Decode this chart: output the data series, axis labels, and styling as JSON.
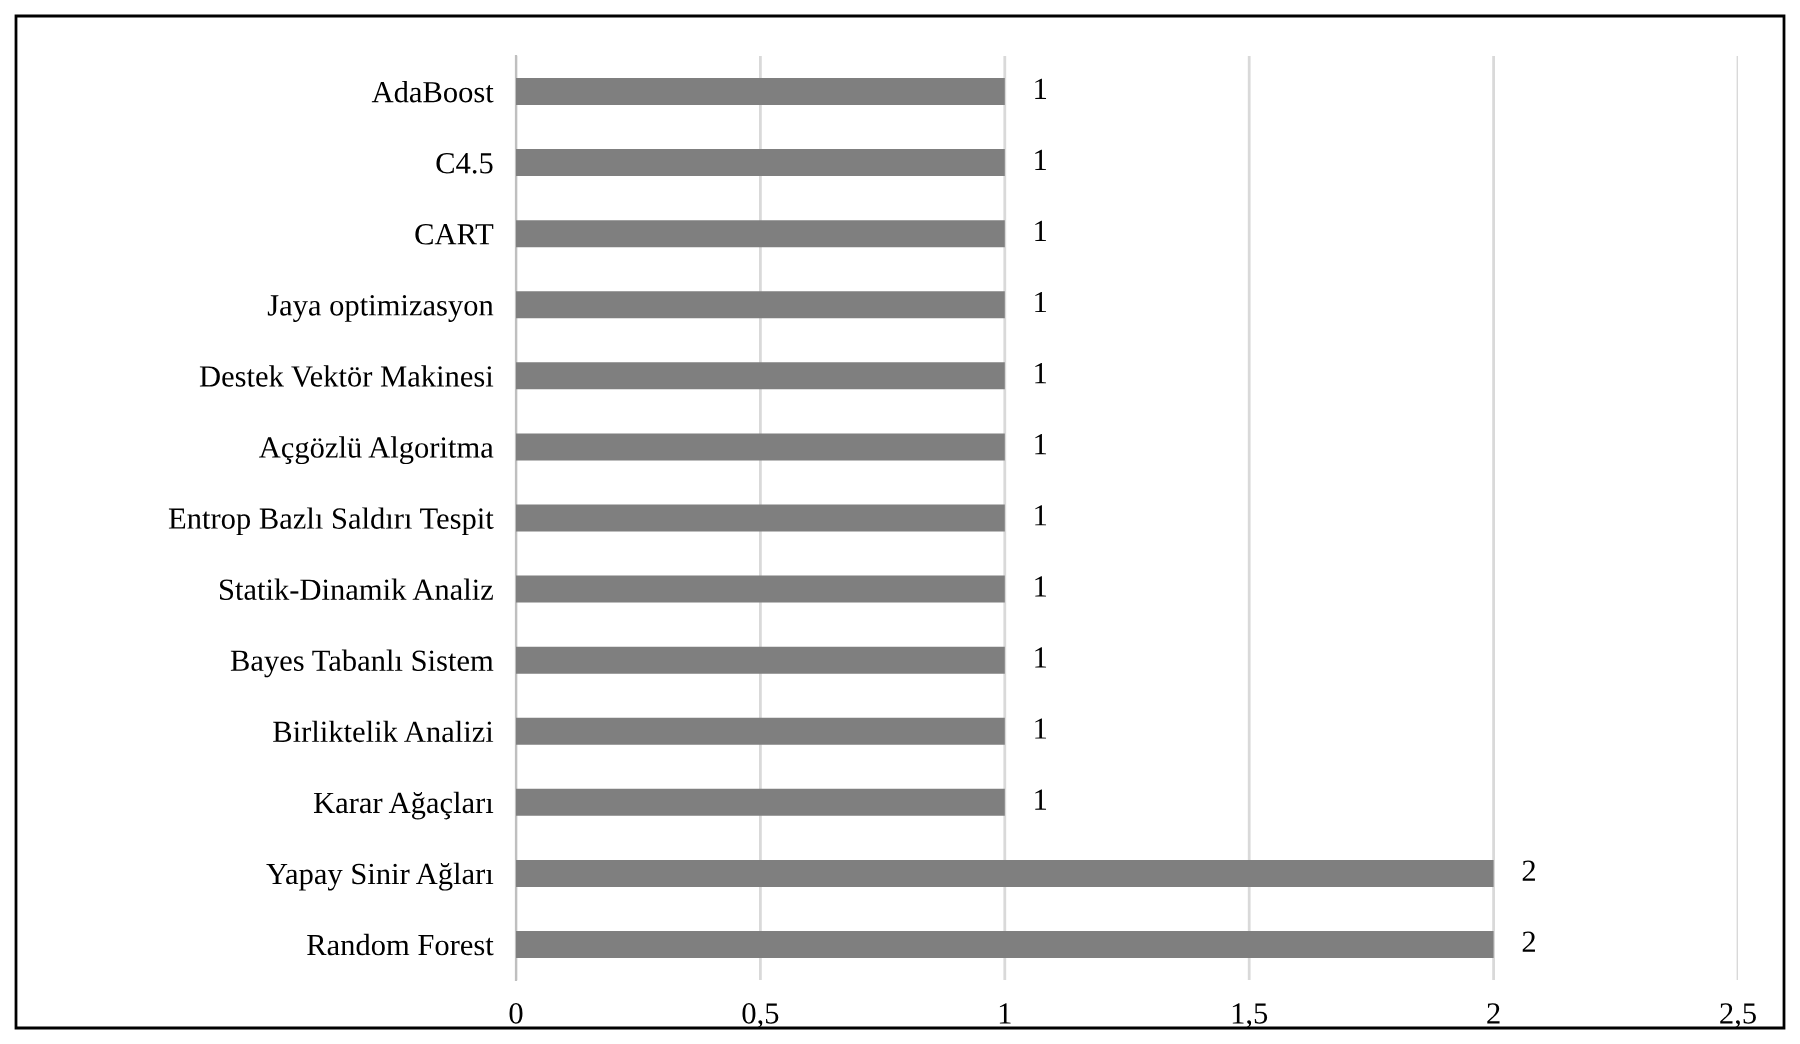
{
  "chart_data": {
    "type": "bar",
    "orientation": "horizontal",
    "categories": [
      "AdaBoost",
      "C4.5",
      "CART",
      "Jaya optimizasyon",
      "Destek Vektör Makinesi",
      "Açgözlü Algoritma",
      "Entrop Bazlı Saldırı Tespit",
      "Statik-Dinamik Analiz",
      "Bayes Tabanlı Sistem",
      "Birliktelik Analizi",
      "Karar Ağaçları",
      "Yapay Sinir Ağları",
      "Random Forest"
    ],
    "values": [
      1,
      1,
      1,
      1,
      1,
      1,
      1,
      1,
      1,
      1,
      1,
      2,
      2
    ],
    "color": "#7f7f7f",
    "xlim": [
      0,
      2.5
    ],
    "xticks": [
      0,
      {
        "value": 0.5,
        "label": "0,5"
      },
      1,
      {
        "value": 1.5,
        "label": "1,5"
      },
      2,
      {
        "value": 2.5,
        "label": "2,5"
      }
    ],
    "grid": "x",
    "data_labels": true,
    "legend": false
  }
}
